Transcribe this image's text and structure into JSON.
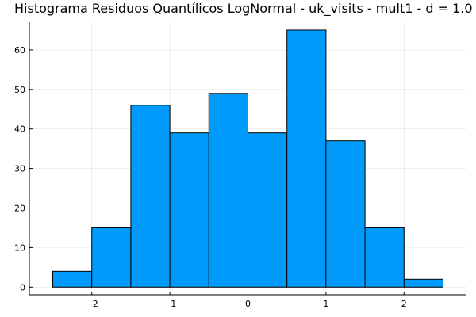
{
  "chart_data": {
    "type": "bar",
    "title": "Histograma Residuos Quantílicos LogNormal - uk_visits - mult1 - d = 1.0",
    "xlabel": "",
    "ylabel": "",
    "bin_edges": [
      -2.5,
      -2.0,
      -1.5,
      -1.0,
      -0.5,
      0.0,
      0.5,
      1.0,
      1.5,
      2.0,
      2.5
    ],
    "values": [
      4,
      15,
      46,
      39,
      49,
      39,
      65,
      37,
      15,
      2
    ],
    "xlim": [
      -2.8,
      2.8
    ],
    "ylim": [
      -1.95,
      67
    ],
    "x_ticks": [
      -2,
      -1,
      0,
      1,
      2
    ],
    "x_tick_labels": [
      "−2",
      "−1",
      "0",
      "1",
      "2"
    ],
    "y_ticks": [
      0,
      10,
      20,
      30,
      40,
      50,
      60
    ],
    "y_tick_labels": [
      "0",
      "10",
      "20",
      "30",
      "40",
      "50",
      "60"
    ],
    "grid": true,
    "legend": "none",
    "colors": {
      "bar_fill": "#009AFA",
      "bar_edge": "#000000"
    }
  }
}
